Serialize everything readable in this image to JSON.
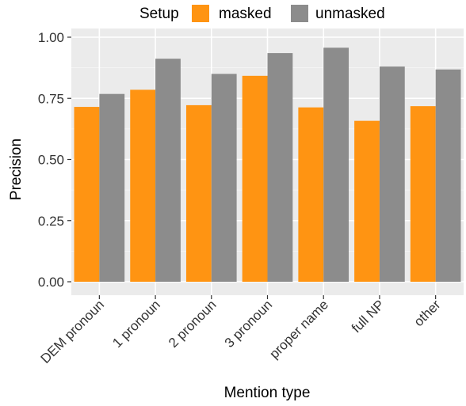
{
  "chart_data": {
    "type": "bar",
    "title": "",
    "xlabel": "Mention type",
    "ylabel": "Precision",
    "categories": [
      "DEM pronoun",
      "1 pronoun",
      "2 pronoun",
      "3 pronoun",
      "proper name",
      "full NP",
      "other"
    ],
    "series": [
      {
        "name": "masked",
        "color": "#FF9412",
        "values": [
          0.715,
          0.785,
          0.722,
          0.842,
          0.713,
          0.658,
          0.718
        ]
      },
      {
        "name": "unmasked",
        "color": "#8C8C8C",
        "values": [
          0.768,
          0.912,
          0.85,
          0.935,
          0.957,
          0.88,
          0.868
        ]
      }
    ],
    "ylim": [
      0,
      1.0
    ],
    "yticks": [
      "0.00",
      "0.25",
      "0.50",
      "0.75",
      "1.00"
    ],
    "ytick_values": [
      0,
      0.25,
      0.5,
      0.75,
      1.0
    ],
    "grid": true,
    "panel_background": "#EBEBEB",
    "legend": {
      "title": "Setup",
      "position": "top",
      "entries": [
        "masked",
        "unmasked"
      ]
    }
  }
}
